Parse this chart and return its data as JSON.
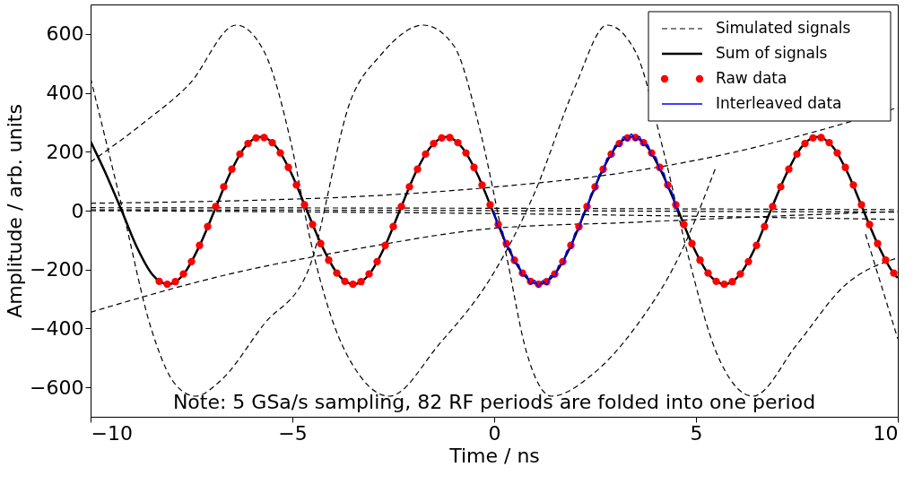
{
  "chart_data": {
    "type": "line",
    "xlabel": "Time / ns",
    "ylabel": "Amplitude / arb. units",
    "xlim": [
      -10,
      10
    ],
    "ylim": [
      -700,
      700
    ],
    "xticks": [
      -10,
      -5,
      0,
      5,
      10
    ],
    "yticks": [
      -600,
      -400,
      -200,
      0,
      200,
      400,
      600
    ],
    "grid": false,
    "legend": "top right",
    "annotations": [
      "Note: 5 GSa/s sampling, 82 RF periods are folded into one period"
    ],
    "series": [
      {
        "name": "Simulated signals",
        "color": "#000000",
        "line_style": "dashed",
        "x": [
          -10,
          -9.2,
          -8.5,
          -7.9,
          -7.4,
          -6.8,
          -5.7,
          -4.6,
          -3.54,
          -2.82,
          -1.75,
          -1.0,
          -0.4,
          0.3,
          0.8,
          1.42,
          2.4,
          3.46,
          4.6,
          5.5,
          6.5,
          7.45,
          8.0,
          8.53,
          9.2,
          10
        ],
        "values": [
          450,
          0,
          -400,
          -590,
          -630,
          -580,
          -385,
          -200,
          380,
          527,
          630,
          560,
          300,
          -150,
          -480,
          -630,
          -560,
          -403,
          -150,
          150,
          null,
          null,
          null,
          null,
          -80,
          -435
        ]
      },
      {
        "color": "#000000",
        "line_style": "dashed",
        "x": [
          -10,
          -8.64,
          -7.55,
          -6.39,
          -5.7,
          -5.01,
          -4.57,
          -4.05,
          -3.33,
          -2.6,
          -1.36,
          -0.04,
          1.0,
          2.0,
          2.8,
          3.5,
          4.2,
          4.8,
          5.5,
          6.41,
          7.51,
          8.67,
          10
        ],
        "values": [
          165,
          303,
          430,
          630,
          540,
          215,
          -90,
          -356,
          -560,
          -630,
          -453,
          -218,
          60,
          420,
          630,
          540,
          200,
          -150,
          -480,
          -630,
          -453,
          -256,
          -160
        ]
      },
      {
        "color": "#000000",
        "line_style": "dashed",
        "x": [
          -10,
          -6,
          -3.5,
          0,
          3.5,
          6,
          8,
          10
        ],
        "values": [
          25,
          35,
          47,
          80,
          135,
          200,
          270,
          350
        ]
      },
      {
        "color": "#000000",
        "line_style": "dashed",
        "x": [
          -10,
          0,
          10
        ],
        "values": [
          10,
          8,
          3
        ]
      },
      {
        "color": "#000000",
        "line_style": "dashed",
        "x": [
          -10,
          0,
          10
        ],
        "values": [
          3,
          0,
          -5
        ]
      },
      {
        "color": "#000000",
        "line_style": "dashed",
        "x": [
          -10,
          0,
          10
        ],
        "values": [
          0,
          -10,
          -30
        ]
      },
      {
        "color": "#000000",
        "line_style": "dashed",
        "x": [
          -10,
          -6.7,
          -3.4,
          0,
          3.4,
          6.7,
          10
        ],
        "values": [
          -345,
          -220,
          -130,
          -60,
          -40,
          -20,
          -3
        ]
      },
      {
        "name": "Sum of signals",
        "color": "#000000",
        "line_style": "solid",
        "x": [
          -10.0,
          -9.62,
          -9.23,
          -8.85,
          -8.47,
          -8.08,
          -7.7,
          -7.32,
          -6.93,
          -6.55,
          -6.17,
          -5.79,
          -5.4,
          -5.02,
          -4.64,
          -4.25,
          -3.87,
          -3.49,
          -3.1,
          -2.72,
          -2.34,
          -1.96,
          -1.57,
          -1.19,
          -0.81,
          -0.42,
          -0.04,
          0.34,
          0.73,
          1.11,
          1.49,
          1.88,
          2.26,
          2.64,
          3.02,
          3.41,
          3.79,
          4.17,
          4.56,
          4.94,
          5.32,
          5.71,
          6.09,
          6.47,
          6.85,
          7.24,
          7.62,
          8.0,
          8.39,
          8.77,
          9.15,
          9.54,
          9.92,
          10.0
        ],
        "values": [
          235,
          125,
          0,
          -125,
          -217,
          -250,
          -217,
          -125,
          0,
          125,
          217,
          250,
          217,
          125,
          0,
          -125,
          -217,
          -250,
          -217,
          -125,
          0,
          125,
          217,
          250,
          217,
          125,
          0,
          -125,
          -217,
          -250,
          -217,
          -125,
          0,
          125,
          217,
          250,
          217,
          125,
          0,
          -125,
          -217,
          -250,
          -217,
          -125,
          0,
          125,
          217,
          250,
          217,
          125,
          0,
          -125,
          -217,
          -228
        ]
      },
      {
        "name": "Raw data",
        "type": "scatter",
        "color": "#ff0000",
        "marker": "circle",
        "x": [
          -8.3,
          -8.1,
          -7.9,
          -7.7,
          -7.5,
          -7.3,
          -7.1,
          -6.9,
          -6.7,
          -6.5,
          -6.3,
          -6.1,
          -5.9,
          -5.7,
          -5.5,
          -5.3,
          -5.1,
          -4.9,
          -4.7,
          -4.5,
          -4.3,
          -4.1,
          -3.9,
          -3.7,
          -3.5,
          -3.3,
          -3.1,
          -2.9,
          -2.7,
          -2.5,
          -2.3,
          -2.1,
          -1.9,
          -1.7,
          -1.5,
          -1.3,
          -1.1,
          -0.9,
          -0.7,
          -0.5,
          -0.3,
          -0.1,
          0.1,
          0.3,
          0.5,
          0.7,
          0.9,
          1.1,
          1.3,
          1.5,
          1.7,
          1.9,
          2.1,
          2.3,
          2.5,
          2.7,
          2.9,
          3.1,
          3.3,
          3.5,
          3.7,
          3.9,
          4.1,
          4.3,
          4.5,
          4.7,
          4.9,
          5.1,
          5.3,
          5.5,
          5.7,
          5.9,
          6.1,
          6.3,
          6.5,
          6.7,
          6.9,
          7.1,
          7.3,
          7.5,
          7.7,
          7.9,
          8.1,
          8.3,
          8.5,
          8.7,
          8.9,
          9.1,
          9.3,
          9.5,
          9.7,
          9.9
        ],
        "values": [
          -240,
          -250,
          -241,
          -215,
          -173,
          -118,
          -54,
          14,
          81,
          141,
          192,
          228,
          247,
          248,
          231,
          196,
          147,
          87,
          20,
          -47,
          -112,
          -168,
          -212,
          -240,
          -250,
          -241,
          -215,
          -173,
          -118,
          -54,
          14,
          81,
          141,
          192,
          228,
          247,
          248,
          231,
          196,
          147,
          87,
          20,
          -47,
          -112,
          -168,
          -212,
          -240,
          -250,
          -241,
          -215,
          -173,
          -118,
          -54,
          14,
          81,
          141,
          192,
          228,
          247,
          248,
          231,
          196,
          147,
          87,
          20,
          -47,
          -112,
          -168,
          -212,
          -240,
          -250,
          -241,
          -215,
          -173,
          -118,
          -54,
          14,
          81,
          141,
          192,
          228,
          247,
          248,
          231,
          196,
          147,
          87,
          20,
          -47,
          -112,
          -168,
          -212
        ]
      },
      {
        "name": "Interleaved data",
        "color": "#0000ff",
        "line_style": "solid",
        "x": [
          0,
          0.1,
          0.2,
          0.3,
          0.4,
          0.5,
          0.6,
          0.7,
          0.8,
          0.9,
          1.0,
          1.1,
          1.2,
          1.3,
          1.4,
          1.5,
          1.6,
          1.7,
          1.8,
          1.9,
          2.0,
          2.1,
          2.2,
          2.3,
          2.4,
          2.5,
          2.6,
          2.7,
          2.8,
          2.9,
          3.0,
          3.1,
          3.2,
          3.3,
          3.4,
          3.5,
          3.6,
          3.7,
          3.8,
          3.9,
          4.0,
          4.1,
          4.2,
          4.3,
          4.4,
          4.5,
          4.6
        ],
        "values": [
          -4,
          -57,
          -70,
          -122,
          -131,
          -178,
          -182,
          -222,
          -218,
          -250,
          -237,
          -260,
          -238,
          -252,
          -221,
          -225,
          -186,
          -183,
          -137,
          -128,
          -77,
          -64,
          -11,
          4,
          57,
          70,
          122,
          131,
          178,
          182,
          222,
          218,
          250,
          237,
          260,
          238,
          252,
          221,
          225,
          186,
          183,
          137,
          128,
          77,
          64,
          11,
          -4
        ]
      }
    ]
  }
}
